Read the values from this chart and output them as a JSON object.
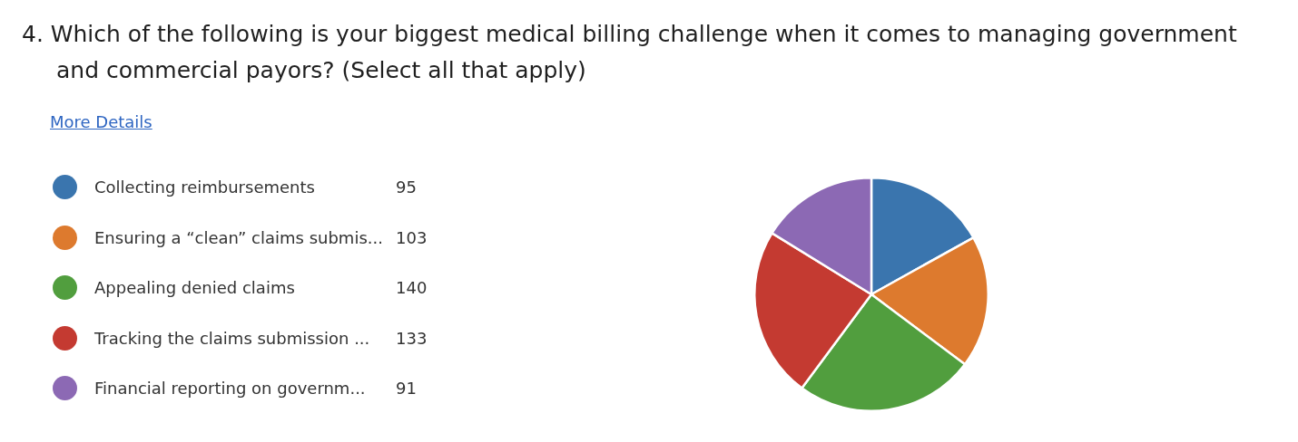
{
  "chart_data": {
    "type": "pie",
    "title": "4. Which of the following is your biggest medical billing challenge when it comes to managing government and commercial payors? (Select all that apply)",
    "annotations": [
      "More Details"
    ],
    "categories": [
      "Collecting reimbursements",
      "Ensuring a “clean” claims submis...",
      "Appealing denied claims",
      "Tracking the claims submission ...",
      "Financial reporting on governm..."
    ],
    "values": [
      95,
      103,
      140,
      133,
      91
    ],
    "colors": [
      "#3a75ae",
      "#dd7a2e",
      "#519e3e",
      "#c43a31",
      "#8c69b4"
    ],
    "legend": "left",
    "data_labels": true
  }
}
